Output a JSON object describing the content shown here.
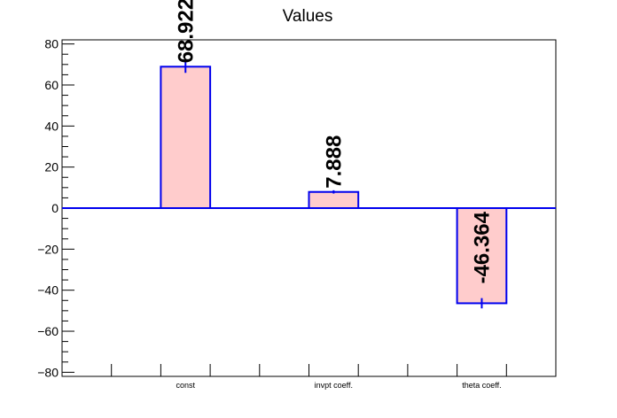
{
  "chart_data": {
    "type": "bar",
    "title": "Values",
    "categories": [
      "const",
      "invpt coeff.",
      "theta coeff."
    ],
    "values": [
      68.922,
      7.888,
      -46.364
    ],
    "value_labels": [
      "68.922",
      "7.888",
      "-46.364"
    ],
    "errors": [
      3.0,
      0.8,
      2.5
    ],
    "xlabel": "",
    "ylabel": "",
    "ylim": [
      -82,
      82
    ],
    "yticks": [
      -80,
      -60,
      -40,
      -20,
      0,
      20,
      40,
      60,
      80
    ],
    "ytick_labels": [
      "−80",
      "−60",
      "−40",
      "−20",
      "0",
      "20",
      "40",
      "60",
      "80"
    ],
    "grid": false,
    "legend": "none",
    "colors": {
      "bar_fill": "#ffcccc",
      "bar_edge": "#0000ee",
      "zero_line": "#0000ee",
      "axis": "#000000"
    }
  }
}
